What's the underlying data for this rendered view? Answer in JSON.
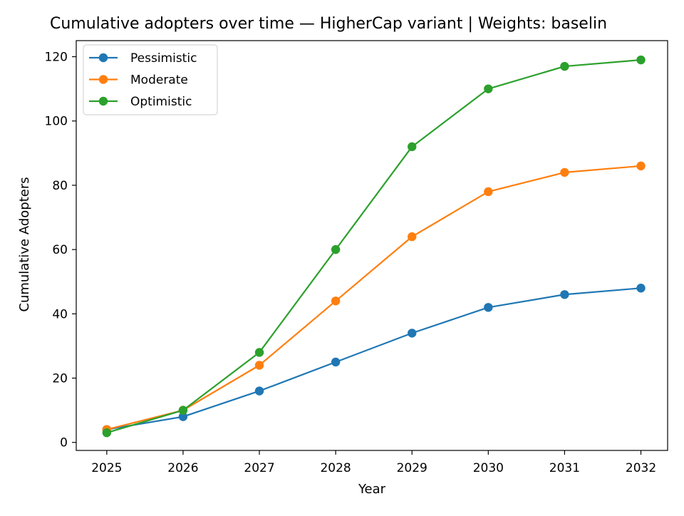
{
  "chart_data": {
    "type": "line",
    "title": "Cumulative adopters over time — HigherCap variant | Weights: baselin",
    "xlabel": "Year",
    "ylabel": "Cumulative Adopters",
    "x": [
      2025,
      2026,
      2027,
      2028,
      2029,
      2030,
      2031,
      2032
    ],
    "x_tick_labels": [
      "2025",
      "2026",
      "2027",
      "2028",
      "2029",
      "2030",
      "2031",
      "2032"
    ],
    "y_ticks": [
      0,
      20,
      40,
      60,
      80,
      100,
      120
    ],
    "y_tick_labels": [
      "0",
      "20",
      "40",
      "60",
      "80",
      "100",
      "120"
    ],
    "xlim": [
      2024.6,
      2032.35
    ],
    "ylim": [
      -2.5,
      125
    ],
    "grid": false,
    "legend_position": "upper-left",
    "series": [
      {
        "name": "Pessimistic",
        "color": "#1f77b4",
        "values": [
          4,
          8,
          16,
          25,
          34,
          42,
          46,
          48
        ]
      },
      {
        "name": "Moderate",
        "color": "#ff7f0e",
        "values": [
          4,
          10,
          24,
          44,
          64,
          78,
          84,
          86
        ]
      },
      {
        "name": "Optimistic",
        "color": "#2ca02c",
        "values": [
          3,
          10,
          28,
          60,
          92,
          110,
          117,
          119
        ]
      }
    ]
  }
}
